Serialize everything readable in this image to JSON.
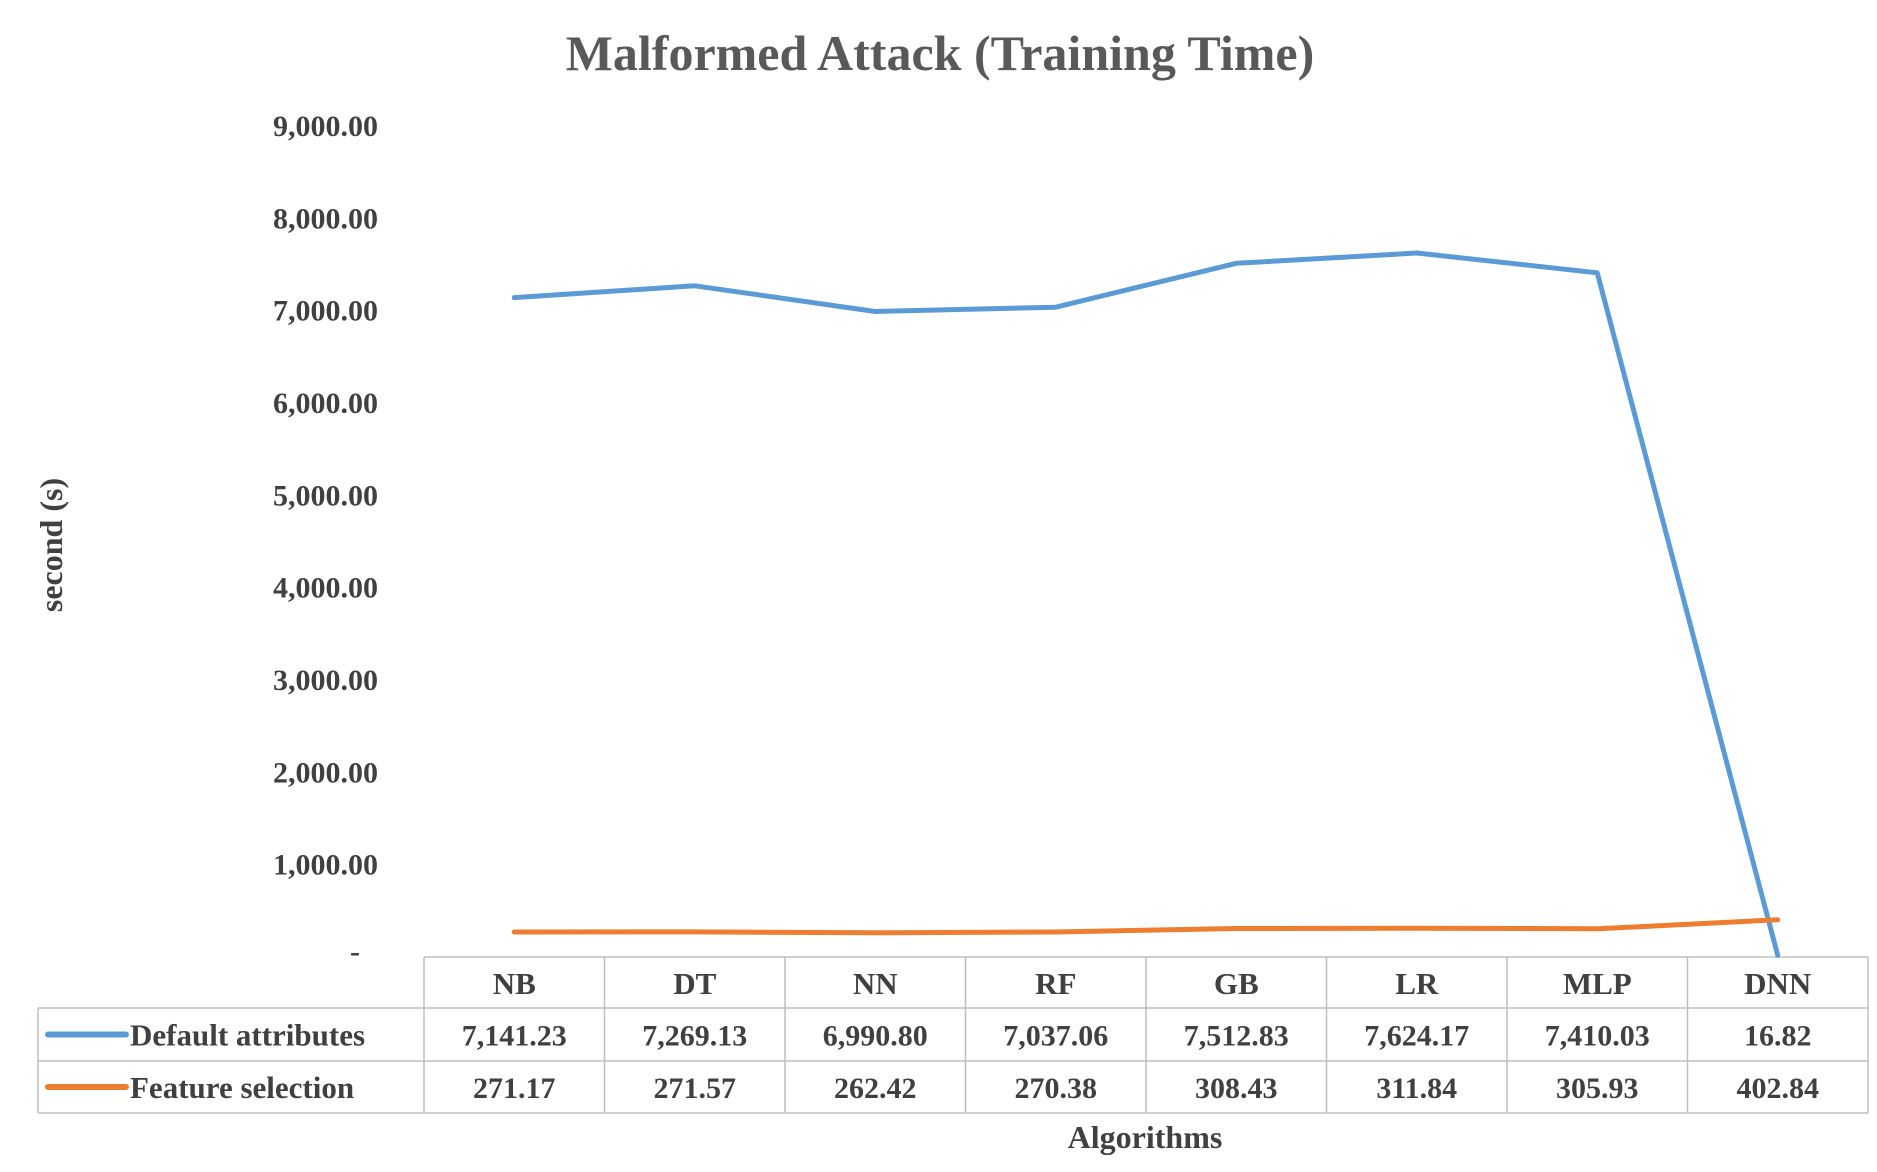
{
  "chart_data": {
    "type": "line",
    "title": "Malformed Attack (Training Time)",
    "xlabel": "Algorithms",
    "ylabel": "second (s)",
    "ylim": [
      0,
      9000
    ],
    "yticks": [
      "-",
      "1,000.00",
      "2,000.00",
      "3,000.00",
      "4,000.00",
      "5,000.00",
      "6,000.00",
      "7,000.00",
      "8,000.00",
      "9,000.00"
    ],
    "categories": [
      "NB",
      "DT",
      "NN",
      "RF",
      "GB",
      "LR",
      "MLP",
      "DNN"
    ],
    "grid": false,
    "legend": "data-table",
    "series": [
      {
        "name": "Default attributes",
        "color": "#5B9BD5",
        "values": [
          7141.23,
          7269.13,
          6990.8,
          7037.06,
          7512.83,
          7624.17,
          7410.03,
          16.82
        ],
        "labels": [
          "7,141.23",
          "7,269.13",
          "6,990.80",
          "7,037.06",
          "7,512.83",
          "7,624.17",
          "7,410.03",
          "16.82"
        ]
      },
      {
        "name": "Feature selection",
        "color": "#ED7D31",
        "values": [
          271.17,
          271.57,
          262.42,
          270.38,
          308.43,
          311.84,
          305.93,
          402.84
        ],
        "labels": [
          "271.17",
          "271.57",
          "262.42",
          "270.38",
          "308.43",
          "311.84",
          "305.93",
          "402.84"
        ]
      }
    ]
  }
}
